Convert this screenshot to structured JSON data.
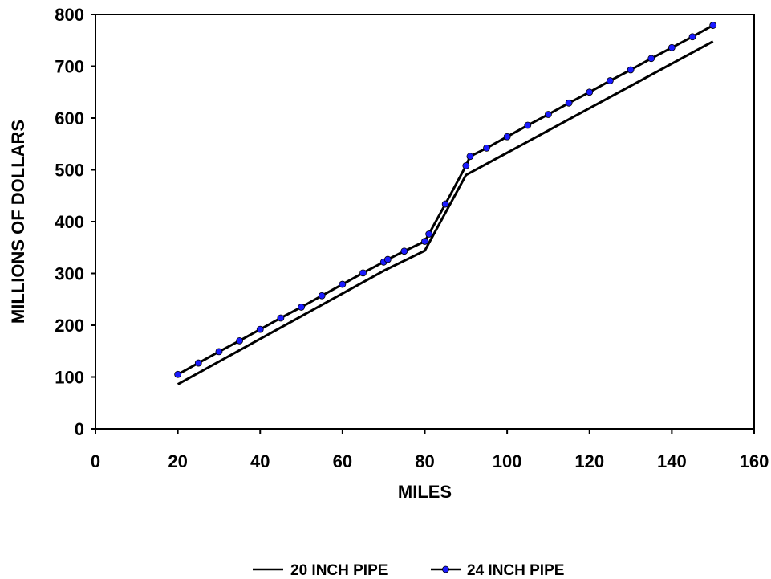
{
  "chart_data": {
    "type": "line",
    "title": "",
    "xlabel": "MILES",
    "ylabel": "MILLIONS OF DOLLARS",
    "xlim": [
      0,
      160
    ],
    "ylim": [
      0,
      800
    ],
    "x_ticks": [
      0,
      20,
      40,
      60,
      80,
      100,
      120,
      140,
      160
    ],
    "y_ticks": [
      0,
      100,
      200,
      300,
      400,
      500,
      600,
      700,
      800
    ],
    "grid": false,
    "legend_position": "bottom-center",
    "series": [
      {
        "name": "20 INCH PIPE",
        "color": "#000000",
        "marker": "none",
        "x": [
          20,
          70,
          80,
          90,
          150
        ],
        "y": [
          86,
          305,
          344,
          490,
          748
        ]
      },
      {
        "name": "24 INCH PIPE",
        "color": "#000000",
        "marker_color": "#1a1aff",
        "marker": "circle",
        "x": [
          20,
          25,
          30,
          35,
          40,
          45,
          50,
          55,
          60,
          65,
          70,
          71,
          75,
          80,
          81,
          85,
          90,
          91,
          95,
          100,
          105,
          110,
          115,
          120,
          125,
          130,
          135,
          140,
          145,
          150
        ],
        "y": [
          105,
          127,
          149,
          170,
          192,
          214,
          235,
          257,
          279,
          301,
          322,
          327,
          343,
          362,
          376,
          434,
          508,
          526,
          542,
          564,
          586,
          607,
          629,
          650,
          672,
          693,
          715,
          736,
          757,
          779
        ]
      }
    ]
  }
}
